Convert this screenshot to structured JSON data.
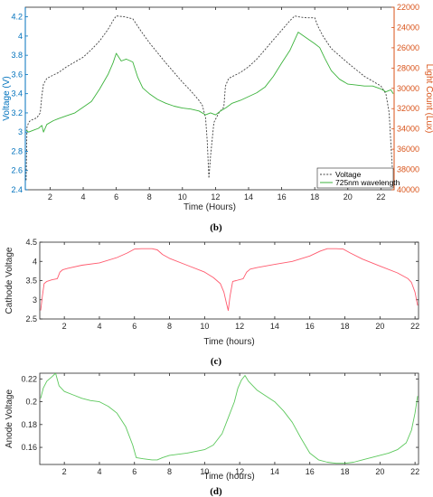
{
  "chart_data": [
    {
      "type": "line",
      "panel_label": "(b)",
      "xlabel": "Time (Hours)",
      "ylabel": "Voltage (V)",
      "ylabel_right": "Light Count (Lux)",
      "xlim": [
        0.5,
        22.8
      ],
      "ylim": [
        2.4,
        4.3
      ],
      "ylim_right": [
        22000,
        40000
      ],
      "right_axis_reversed": true,
      "x_ticks": [
        2,
        4,
        6,
        8,
        10,
        12,
        14,
        16,
        18,
        20,
        22
      ],
      "y_ticks": [
        2.4,
        2.6,
        2.8,
        3,
        3.2,
        3.4,
        3.6,
        3.8,
        4,
        4.2
      ],
      "y_ticks_right": [
        22000,
        24000,
        26000,
        28000,
        30000,
        32000,
        34000,
        36000,
        38000,
        40000
      ],
      "legend_position": "bottom-right",
      "series": [
        {
          "name": "Voltage",
          "axis": "left",
          "color": "#404040",
          "style": "dashed",
          "x": [
            0.55,
            0.6,
            0.7,
            0.8,
            1.2,
            1.4,
            1.5,
            1.6,
            1.8,
            2.5,
            3,
            4,
            4.5,
            5,
            5.5,
            5.8,
            6,
            6.5,
            7,
            7.5,
            8,
            9,
            10,
            10.5,
            11,
            11.2,
            11.4,
            11.5,
            11.6,
            11.7,
            11.9,
            12.2,
            12.5,
            12.6,
            12.8,
            13.5,
            14,
            14.5,
            15,
            15.5,
            16,
            16.5,
            16.8,
            17,
            17.5,
            18,
            18.2,
            18.5,
            19,
            20,
            21,
            22,
            22.3,
            22.5,
            22.6,
            22.7
          ],
          "y": [
            2.5,
            3.05,
            3.1,
            3.12,
            3.15,
            3.2,
            3.38,
            3.5,
            3.56,
            3.62,
            3.68,
            3.78,
            3.86,
            3.95,
            4.07,
            4.16,
            4.21,
            4.2,
            4.18,
            4.05,
            3.93,
            3.72,
            3.52,
            3.43,
            3.33,
            3.28,
            3.15,
            2.9,
            2.52,
            2.75,
            3.1,
            3.2,
            3.26,
            3.48,
            3.56,
            3.62,
            3.68,
            3.76,
            3.86,
            3.96,
            4.06,
            4.16,
            4.21,
            4.2,
            4.19,
            4.19,
            4.1,
            4.0,
            3.87,
            3.72,
            3.58,
            3.48,
            3.4,
            3.2,
            2.9,
            2.6
          ]
        },
        {
          "name": "725nm wavelength",
          "axis": "left",
          "color": "#3cb33c",
          "style": "solid",
          "x": [
            0.55,
            0.7,
            1,
            1.3,
            1.5,
            1.6,
            1.8,
            2.2,
            2.5,
            3,
            3.5,
            4,
            4.5,
            5,
            5.5,
            5.8,
            6,
            6.3,
            6.6,
            7,
            7.3,
            7.6,
            8,
            8.5,
            9,
            9.5,
            10,
            10.5,
            11,
            11.4,
            11.7,
            12,
            12.3,
            12.6,
            13,
            13.5,
            14,
            14.5,
            15,
            15.5,
            16,
            16.5,
            17,
            17.5,
            18,
            18.3,
            18.6,
            19,
            19.5,
            20,
            20.5,
            21,
            21.5,
            22,
            22.3,
            22.6,
            22.75
          ],
          "y": [
            3.02,
            3.0,
            3.02,
            3.04,
            3.07,
            3.0,
            3.08,
            3.12,
            3.14,
            3.17,
            3.2,
            3.26,
            3.32,
            3.45,
            3.6,
            3.72,
            3.82,
            3.74,
            3.76,
            3.73,
            3.57,
            3.46,
            3.4,
            3.34,
            3.3,
            3.27,
            3.25,
            3.24,
            3.22,
            3.18,
            3.2,
            3.18,
            3.22,
            3.25,
            3.3,
            3.33,
            3.37,
            3.41,
            3.47,
            3.58,
            3.72,
            3.85,
            4.04,
            3.98,
            3.92,
            3.88,
            3.77,
            3.64,
            3.55,
            3.5,
            3.49,
            3.48,
            3.48,
            3.45,
            3.42,
            3.44,
            3.4
          ]
        }
      ]
    },
    {
      "type": "line",
      "panel_label": "(c)",
      "xlabel": "Time (hours)",
      "ylabel": "Cathode Voltage",
      "xlim": [
        0.6,
        22.2
      ],
      "ylim": [
        2.5,
        4.5
      ],
      "x_ticks": [
        2,
        4,
        6,
        8,
        10,
        12,
        14,
        16,
        18,
        20,
        22
      ],
      "y_ticks": [
        2.5,
        3,
        3.5,
        4,
        4.5
      ],
      "series": [
        {
          "axis": "left",
          "color": "#ff5a6e",
          "style": "solid",
          "x": [
            0.65,
            0.75,
            0.85,
            1.0,
            1.3,
            1.6,
            1.75,
            1.9,
            2.2,
            3,
            4,
            5,
            5.6,
            6.0,
            6.4,
            7.0,
            7.3,
            7.6,
            8,
            9,
            10,
            10.5,
            10.9,
            11.1,
            11.25,
            11.35,
            11.45,
            11.6,
            11.8,
            12.2,
            12.4,
            12.6,
            13,
            14,
            15,
            16,
            16.6,
            17.0,
            17.5,
            17.9,
            18.3,
            19,
            20,
            21,
            21.6,
            21.8,
            22.0,
            22.15
          ],
          "y": [
            2.72,
            3.1,
            3.42,
            3.48,
            3.52,
            3.55,
            3.72,
            3.78,
            3.82,
            3.9,
            3.96,
            4.1,
            4.22,
            4.32,
            4.33,
            4.33,
            4.3,
            4.18,
            4.08,
            3.9,
            3.72,
            3.58,
            3.42,
            3.2,
            2.9,
            2.72,
            3.1,
            3.48,
            3.5,
            3.55,
            3.72,
            3.8,
            3.84,
            3.92,
            4.0,
            4.14,
            4.27,
            4.33,
            4.33,
            4.32,
            4.22,
            4.06,
            3.88,
            3.7,
            3.55,
            3.45,
            3.2,
            2.85
          ]
        }
      ]
    },
    {
      "type": "line",
      "panel_label": "(d)",
      "xlabel": "Time (hours)",
      "ylabel": "Anode Voltage",
      "xlim": [
        0.6,
        22.2
      ],
      "ylim": [
        0.145,
        0.225
      ],
      "x_ticks": [
        2,
        4,
        6,
        8,
        10,
        12,
        14,
        16,
        18,
        20,
        22
      ],
      "y_ticks": [
        0.16,
        0.18,
        0.2,
        0.22
      ],
      "series": [
        {
          "axis": "left",
          "color": "#5cc85c",
          "style": "solid",
          "x": [
            0.65,
            0.8,
            1.0,
            1.3,
            1.5,
            1.7,
            2.0,
            2.5,
            3,
            3.5,
            4,
            4.5,
            5,
            5.5,
            5.9,
            6.1,
            6.5,
            7,
            7.3,
            7.6,
            8,
            9,
            10,
            10.5,
            11,
            11.4,
            11.7,
            11.9,
            12.1,
            12.3,
            12.5,
            13,
            13.5,
            14,
            14.5,
            15,
            15.5,
            16,
            16.5,
            17,
            17.5,
            18,
            18.5,
            19,
            19.5,
            20,
            20.5,
            21,
            21.5,
            21.8,
            22.0,
            22.15
          ],
          "y": [
            0.203,
            0.212,
            0.218,
            0.222,
            0.225,
            0.214,
            0.209,
            0.206,
            0.203,
            0.201,
            0.2,
            0.196,
            0.19,
            0.178,
            0.162,
            0.151,
            0.15,
            0.149,
            0.149,
            0.151,
            0.153,
            0.155,
            0.158,
            0.162,
            0.172,
            0.188,
            0.2,
            0.212,
            0.219,
            0.223,
            0.218,
            0.21,
            0.205,
            0.2,
            0.192,
            0.182,
            0.168,
            0.155,
            0.149,
            0.147,
            0.146,
            0.146,
            0.147,
            0.149,
            0.151,
            0.153,
            0.155,
            0.158,
            0.164,
            0.175,
            0.19,
            0.205
          ]
        }
      ]
    }
  ]
}
